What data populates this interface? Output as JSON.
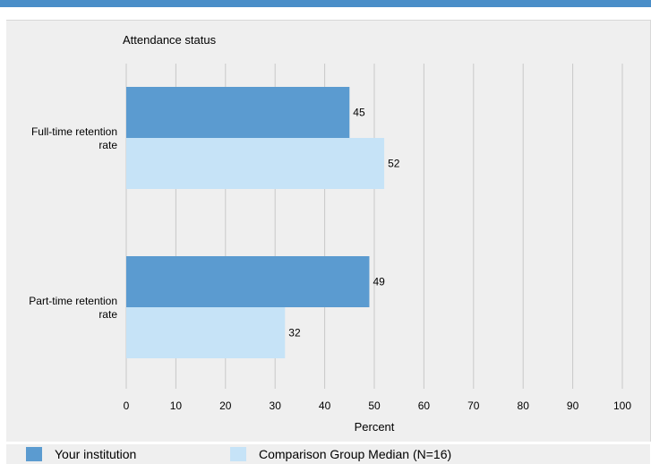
{
  "chart_data": {
    "type": "bar",
    "orientation": "horizontal",
    "categories": [
      "Full-time retention rate",
      "Part-time retention rate"
    ],
    "category_label_lines": [
      [
        "Full-time retention",
        "rate"
      ],
      [
        "Part-time retention",
        "rate"
      ]
    ],
    "series": [
      {
        "name": "Your institution",
        "values": [
          45,
          49
        ],
        "color": "#5b9bd0"
      },
      {
        "name": "Comparison Group Median (N=16)",
        "values": [
          52,
          32
        ],
        "color": "#c6e3f7"
      }
    ],
    "title": "Attendance status",
    "xlabel": "Percent",
    "xlim": [
      0,
      100
    ],
    "xticks": [
      0,
      10,
      20,
      30,
      40,
      50,
      60,
      70,
      80,
      90,
      100
    ],
    "grid": true,
    "legend_position": "bottom"
  }
}
